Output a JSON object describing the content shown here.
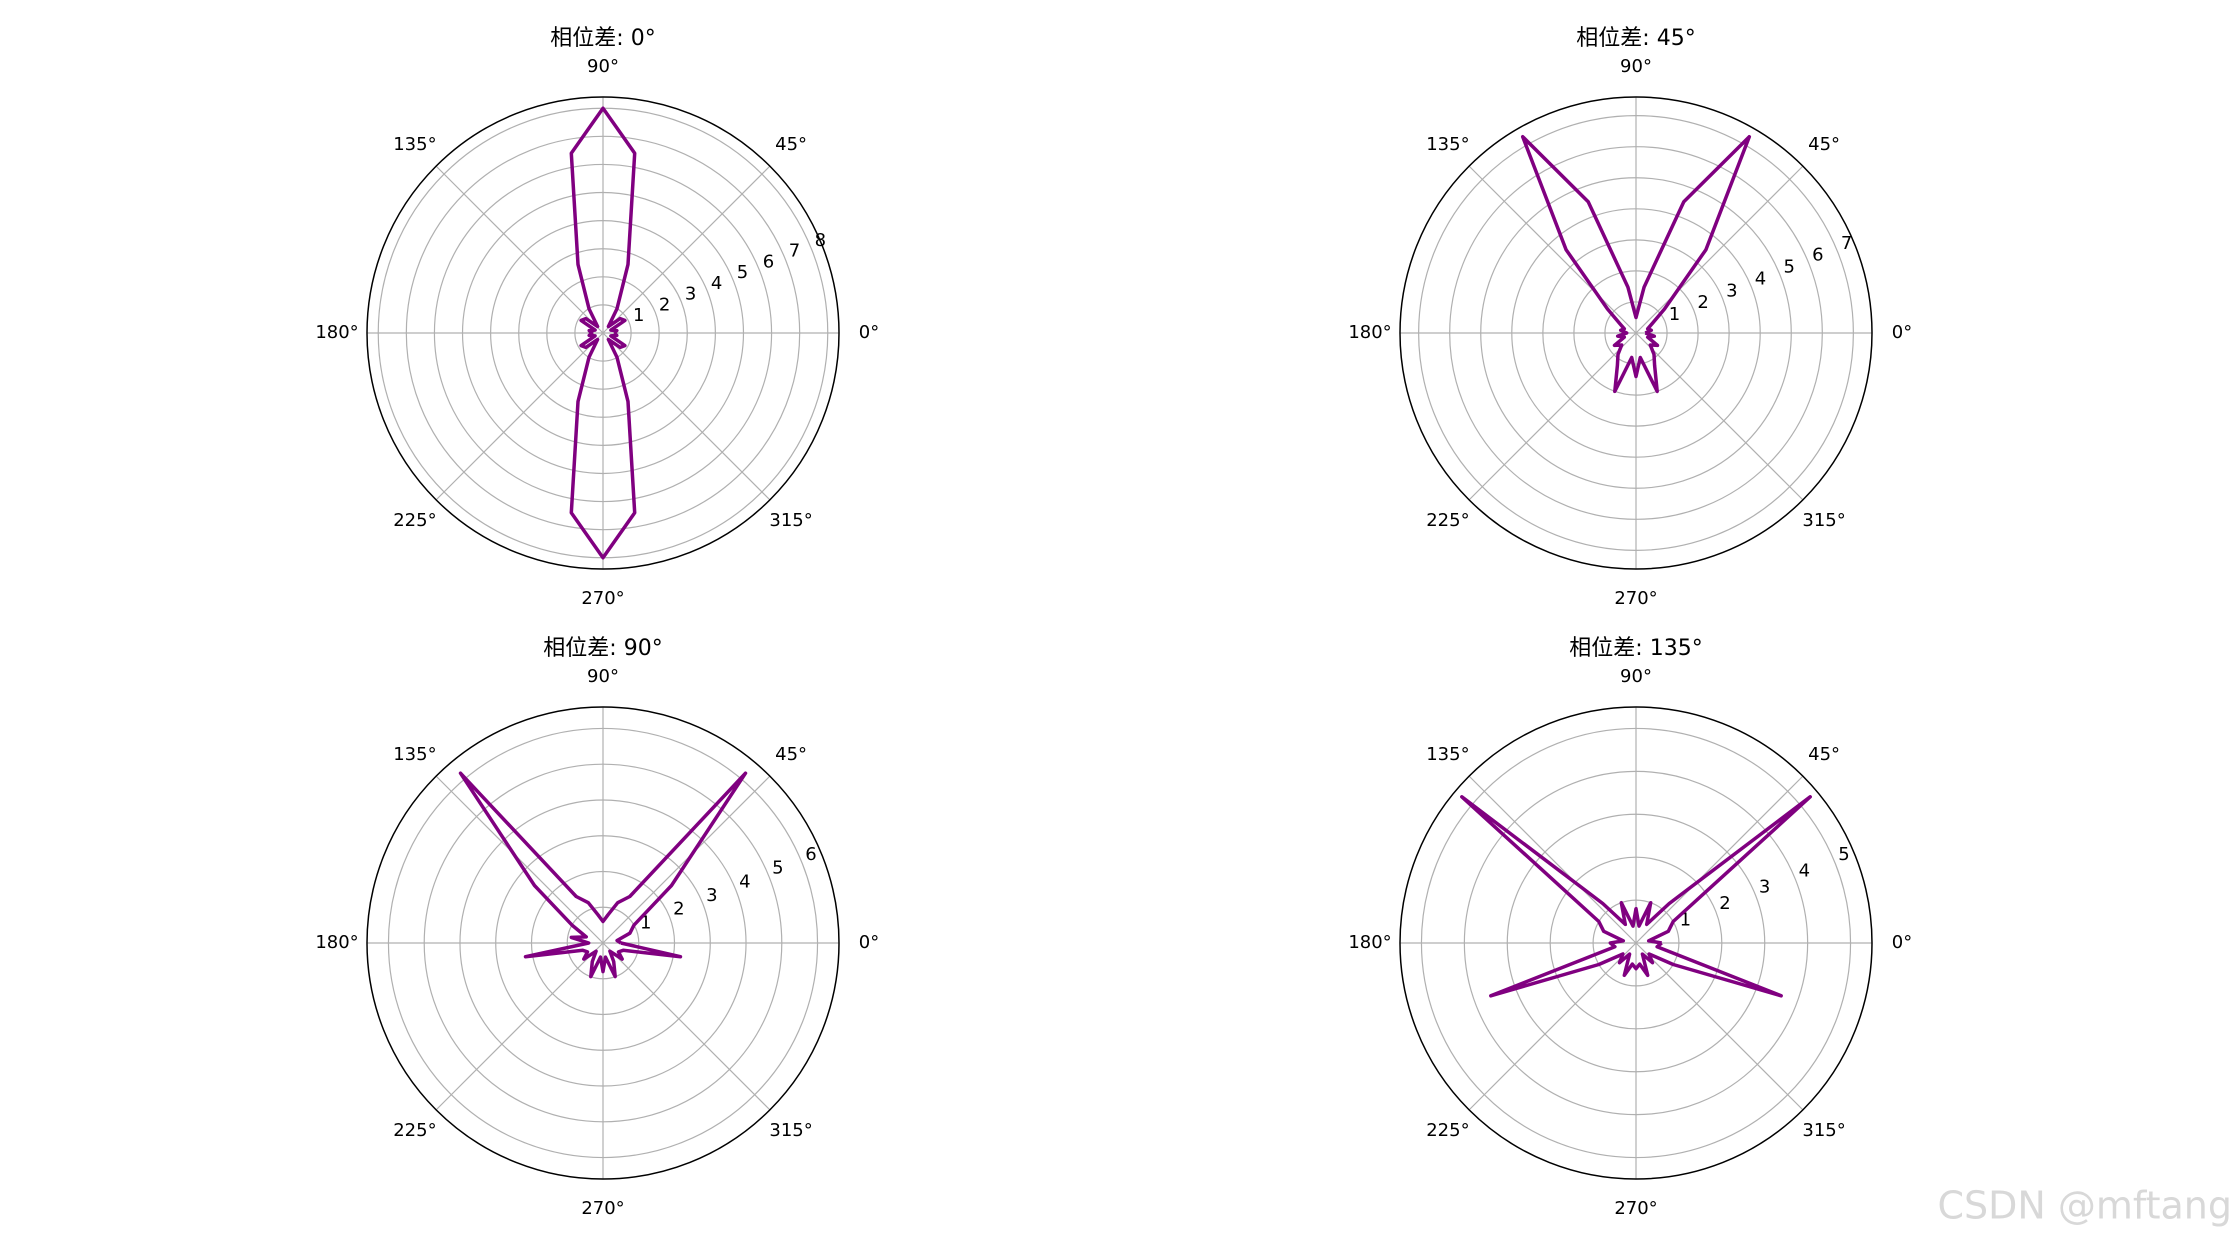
{
  "chart_data": [
    {
      "type": "polar",
      "title": "相位差: 0°",
      "color": "#800080",
      "grid": true,
      "x": [
        0,
        10,
        20,
        30,
        40,
        50,
        60,
        70,
        80,
        90,
        100,
        110,
        120,
        130,
        140,
        150,
        160,
        170,
        180,
        190,
        200,
        210,
        220,
        230,
        240,
        250,
        260,
        270,
        280,
        290,
        300,
        310,
        320,
        330,
        340,
        350,
        360
      ],
      "values": [
        0.4,
        0.5,
        0.3,
        0.9,
        0.8,
        0.3,
        1.0,
        2.6,
        6.5,
        8.0,
        6.5,
        2.6,
        1.0,
        0.3,
        0.8,
        0.9,
        0.3,
        0.5,
        0.4,
        0.5,
        0.3,
        0.9,
        0.8,
        0.3,
        1.0,
        2.6,
        6.5,
        8.0,
        6.5,
        2.6,
        1.0,
        0.3,
        0.8,
        0.9,
        0.3,
        0.5,
        0.4
      ],
      "ylim": [
        0,
        8.4
      ],
      "yticks": [
        1,
        2,
        3,
        4,
        5,
        6,
        7,
        8
      ],
      "xticks": [
        {
          "value": 0,
          "label": "0°"
        },
        {
          "value": 45,
          "label": "45°"
        },
        {
          "value": 90,
          "label": "90°"
        },
        {
          "value": 135,
          "label": "135°"
        },
        {
          "value": 180,
          "label": "180°"
        },
        {
          "value": 225,
          "label": "225°"
        },
        {
          "value": 270,
          "label": "270°"
        },
        {
          "value": 315,
          "label": "315°"
        }
      ]
    },
    {
      "type": "polar",
      "title": "相位差: 45°",
      "color": "#800080",
      "grid": true,
      "x": [
        0,
        10,
        20,
        30,
        40,
        50,
        60,
        70,
        80,
        90,
        100,
        110,
        120,
        130,
        140,
        150,
        160,
        170,
        180,
        190,
        200,
        210,
        220,
        230,
        240,
        250,
        260,
        270,
        280,
        290,
        300,
        310,
        320,
        330,
        340,
        350,
        360
      ],
      "values": [
        0.3,
        0.5,
        0.4,
        0.6,
        1.2,
        3.5,
        7.3,
        4.5,
        1.5,
        0.5,
        1.5,
        4.5,
        7.3,
        3.5,
        1.2,
        0.6,
        0.4,
        0.5,
        0.3,
        0.6,
        0.4,
        0.8,
        0.6,
        0.9,
        1.2,
        2.0,
        0.8,
        1.4,
        0.8,
        2.0,
        1.2,
        0.9,
        0.6,
        0.8,
        0.4,
        0.6,
        0.3
      ],
      "ylim": [
        0,
        7.6
      ],
      "yticks": [
        1,
        2,
        3,
        4,
        5,
        6,
        7
      ],
      "xticks": [
        {
          "value": 0,
          "label": "0°"
        },
        {
          "value": 45,
          "label": "45°"
        },
        {
          "value": 90,
          "label": "90°"
        },
        {
          "value": 135,
          "label": "135°"
        },
        {
          "value": 180,
          "label": "180°"
        },
        {
          "value": 225,
          "label": "225°"
        },
        {
          "value": 270,
          "label": "270°"
        },
        {
          "value": 315,
          "label": "315°"
        }
      ]
    },
    {
      "type": "polar",
      "title": "相位差: 90°",
      "color": "#800080",
      "grid": true,
      "x": [
        0,
        10,
        20,
        30,
        40,
        50,
        60,
        70,
        80,
        90,
        100,
        110,
        120,
        130,
        140,
        150,
        160,
        170,
        180,
        190,
        200,
        210,
        220,
        230,
        240,
        250,
        260,
        270,
        280,
        290,
        300,
        310,
        320,
        330,
        340,
        350,
        360
      ],
      "values": [
        0.5,
        0.4,
        0.8,
        1.0,
        2.5,
        6.2,
        1.5,
        1.2,
        0.8,
        0.6,
        0.8,
        1.2,
        1.5,
        6.2,
        2.5,
        1.0,
        0.5,
        0.9,
        0.4,
        2.2,
        0.6,
        0.5,
        0.7,
        0.3,
        0.6,
        1.0,
        0.4,
        0.8,
        0.4,
        1.0,
        0.6,
        0.3,
        0.7,
        0.5,
        0.6,
        2.2,
        0.5
      ],
      "ylim": [
        0,
        6.6
      ],
      "yticks": [
        1,
        2,
        3,
        4,
        5,
        6
      ],
      "xticks": [
        {
          "value": 0,
          "label": "0°"
        },
        {
          "value": 45,
          "label": "45°"
        },
        {
          "value": 90,
          "label": "90°"
        },
        {
          "value": 135,
          "label": "135°"
        },
        {
          "value": 180,
          "label": "180°"
        },
        {
          "value": 225,
          "label": "225°"
        },
        {
          "value": 270,
          "label": "270°"
        },
        {
          "value": 315,
          "label": "315°"
        }
      ]
    },
    {
      "type": "polar",
      "title": "相位差: 135°",
      "color": "#800080",
      "grid": true,
      "x": [
        0,
        10,
        20,
        30,
        40,
        50,
        60,
        70,
        80,
        90,
        100,
        110,
        120,
        130,
        140,
        150,
        160,
        170,
        180,
        190,
        200,
        210,
        220,
        230,
        240,
        250,
        260,
        270,
        280,
        290,
        300,
        310,
        320,
        330,
        340,
        350,
        360
      ],
      "values": [
        0.6,
        0.3,
        0.8,
        1.0,
        5.3,
        1.2,
        0.5,
        1.0,
        0.4,
        0.8,
        0.4,
        1.0,
        0.5,
        1.2,
        5.3,
        1.0,
        0.8,
        0.3,
        0.6,
        0.5,
        3.6,
        1.0,
        0.4,
        0.6,
        0.3,
        0.8,
        0.5,
        0.6,
        0.5,
        0.8,
        0.3,
        0.6,
        0.4,
        1.0,
        3.6,
        0.5,
        0.6
      ],
      "ylim": [
        0,
        5.5
      ],
      "yticks": [
        1,
        2,
        3,
        4,
        5
      ],
      "xticks": [
        {
          "value": 0,
          "label": "0°"
        },
        {
          "value": 45,
          "label": "45°"
        },
        {
          "value": 90,
          "label": "90°"
        },
        {
          "value": 135,
          "label": "135°"
        },
        {
          "value": 180,
          "label": "180°"
        },
        {
          "value": 225,
          "label": "225°"
        },
        {
          "value": 270,
          "label": "270°"
        },
        {
          "value": 315,
          "label": "315°"
        }
      ]
    }
  ],
  "watermark": "CSDN @mftang"
}
